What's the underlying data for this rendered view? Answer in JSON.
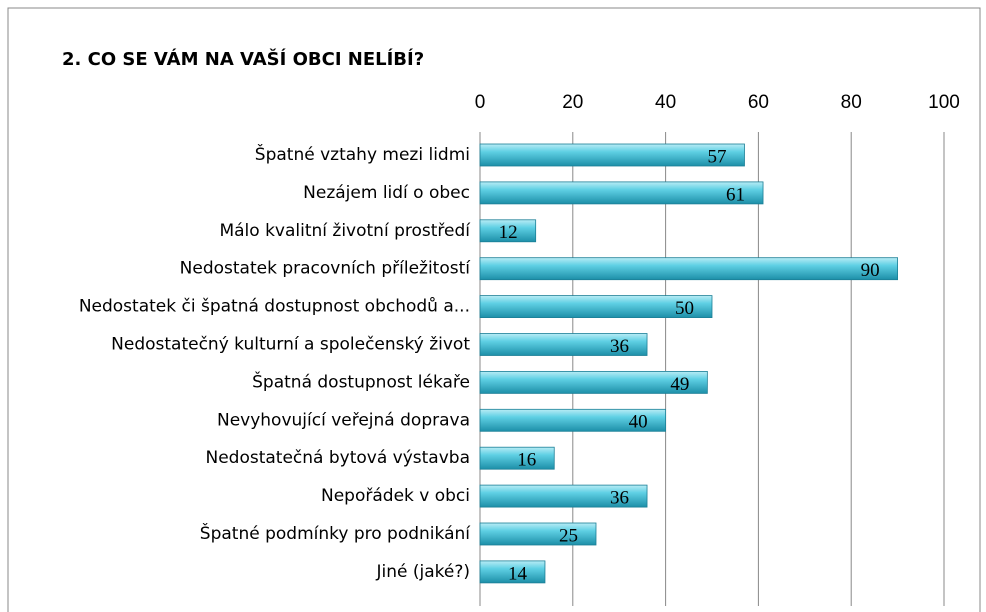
{
  "chart_data": {
    "type": "bar",
    "orientation": "horizontal",
    "title": "2. CO SE VÁM NA VAŠÍ OBCI NELÍBÍ?",
    "categories": [
      "Špatné vztahy mezi lidmi",
      "Nezájem lidí o obec",
      "Málo kvalitní životní prostředí",
      "Nedostatek pracovních příležitostí",
      "Nedostatek či špatná dostupnost obchodů a...",
      "Nedostatečný kulturní a společenský život",
      "Špatná dostupnost lékaře",
      "Nevyhovující veřejná doprava",
      "Nedostatečná bytová výstavba",
      "Nepořádek v obci",
      "Špatné podmínky pro podnikání",
      "Jiné (jaké?)"
    ],
    "values": [
      57,
      61,
      12,
      90,
      50,
      36,
      49,
      40,
      16,
      36,
      25,
      14
    ],
    "color": "#3fc0d8",
    "xlim": [
      0,
      100
    ],
    "xticks": [
      0,
      20,
      40,
      60,
      80,
      100
    ],
    "grid": true
  }
}
